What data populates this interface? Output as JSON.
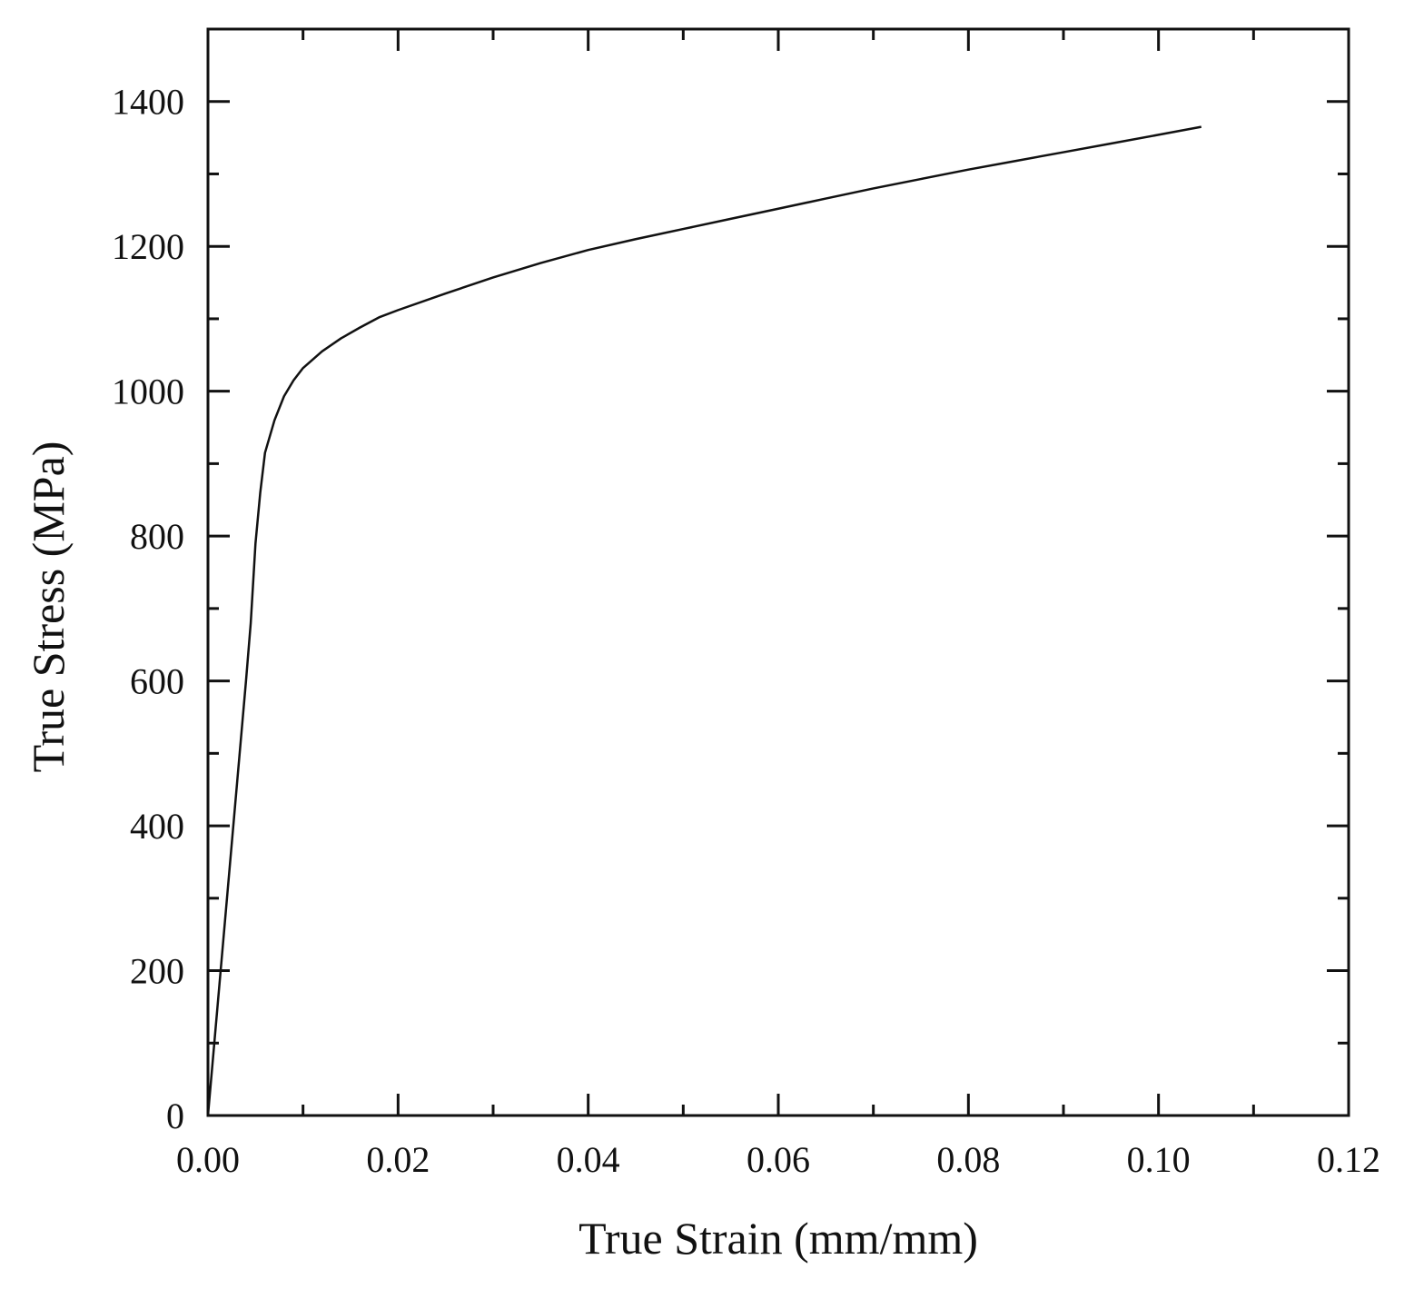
{
  "chart_data": {
    "type": "line",
    "title": "",
    "xlabel": "True Strain (mm/mm)",
    "ylabel": "True Stress (MPa)",
    "xlim": [
      0.0,
      0.12
    ],
    "ylim": [
      0,
      1500
    ],
    "x_ticks": [
      0.0,
      0.02,
      0.04,
      0.06,
      0.08,
      0.1,
      0.12
    ],
    "x_tick_labels": [
      "0.00",
      "0.02",
      "0.04",
      "0.06",
      "0.08",
      "0.10",
      "0.12"
    ],
    "x_minor_ticks": [
      0.01,
      0.03,
      0.05,
      0.07,
      0.09,
      0.11
    ],
    "y_ticks": [
      0,
      200,
      400,
      600,
      800,
      1000,
      1200,
      1400
    ],
    "y_tick_labels": [
      "0",
      "200",
      "400",
      "600",
      "800",
      "1000",
      "1200",
      "1400"
    ],
    "y_minor_ticks": [
      100,
      300,
      500,
      700,
      900,
      1100,
      1300
    ],
    "grid": false,
    "legend": "none",
    "line_color": "#111111",
    "series": [
      {
        "x": [
          0.0,
          0.001,
          0.002,
          0.003,
          0.004,
          0.0045,
          0.005,
          0.0055,
          0.006,
          0.007,
          0.008,
          0.009,
          0.01,
          0.012,
          0.014,
          0.016,
          0.018,
          0.02,
          0.025,
          0.03,
          0.035,
          0.04,
          0.045,
          0.05,
          0.055,
          0.06,
          0.065,
          0.07,
          0.075,
          0.08,
          0.085,
          0.09,
          0.095,
          0.1,
          0.1045
        ],
        "y": [
          0,
          150,
          300,
          450,
          600,
          680,
          790,
          860,
          915,
          960,
          993,
          1015,
          1032,
          1055,
          1073,
          1088,
          1102,
          1112,
          1135,
          1157,
          1177,
          1195,
          1210,
          1224,
          1238,
          1252,
          1266,
          1280,
          1293,
          1306,
          1318,
          1330,
          1342,
          1354,
          1365
        ]
      }
    ]
  }
}
